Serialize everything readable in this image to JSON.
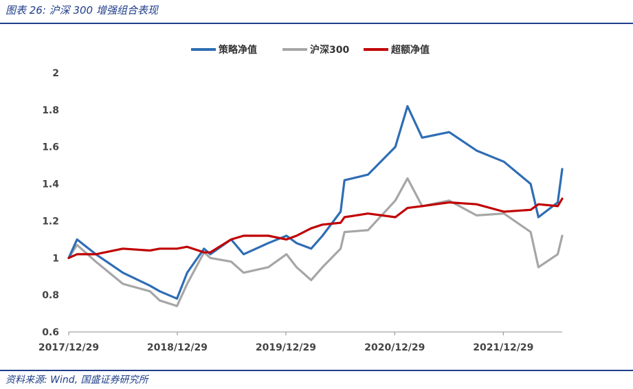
{
  "figure": {
    "title": "图表 26:  沪深 300 增强组合表现",
    "source": "资料来源: Wind, 国盛证券研究所"
  },
  "chart_data": {
    "type": "line",
    "title": "",
    "xlabel": "",
    "ylabel": "",
    "ylim": [
      0.6,
      2.0
    ],
    "yticks": [
      "0.6",
      "0.8",
      "1",
      "1.2",
      "1.4",
      "1.6",
      "1.8",
      "2"
    ],
    "xticks": [
      "2017/12/29",
      "2018/12/29",
      "2019/12/29",
      "2020/12/29",
      "2021/12/29"
    ],
    "xlim": [
      "2017/12/29",
      "2022/07/15"
    ],
    "grid": false,
    "legend": "top-center",
    "x": [
      "2017/12/29",
      "2018/01/26",
      "2018/03/30",
      "2018/06/29",
      "2018/09/28",
      "2018/10/31",
      "2018/12/28",
      "2019/01/31",
      "2019/03/29",
      "2019/04/19",
      "2019/06/28",
      "2019/08/09",
      "2019/10/31",
      "2019/12/31",
      "2020/02/03",
      "2020/03/23",
      "2020/04/30",
      "2020/06/30",
      "2020/07/13",
      "2020/09/30",
      "2020/12/31",
      "2021/02/10",
      "2021/03/31",
      "2021/06/30",
      "2021/09/30",
      "2021/12/31",
      "2022/03/31",
      "2022/04/26",
      "2022/06/30",
      "2022/07/15"
    ],
    "series": [
      {
        "name": "策略净值",
        "color": "#2e6db4",
        "values": [
          1.0,
          1.1,
          1.02,
          0.92,
          0.85,
          0.82,
          0.78,
          0.92,
          1.05,
          1.02,
          1.1,
          1.02,
          1.08,
          1.12,
          1.08,
          1.05,
          1.12,
          1.25,
          1.42,
          1.45,
          1.6,
          1.82,
          1.65,
          1.68,
          1.58,
          1.52,
          1.4,
          1.22,
          1.3,
          1.48
        ]
      },
      {
        "name": "沪深300",
        "color": "#a6a6a6",
        "values": [
          1.0,
          1.07,
          0.98,
          0.86,
          0.82,
          0.77,
          0.74,
          0.86,
          1.03,
          1.0,
          0.98,
          0.92,
          0.95,
          1.02,
          0.95,
          0.88,
          0.95,
          1.05,
          1.14,
          1.15,
          1.31,
          1.43,
          1.28,
          1.31,
          1.23,
          1.24,
          1.14,
          0.95,
          1.02,
          1.12
        ]
      },
      {
        "name": "超额净值",
        "color": "#c00000",
        "values": [
          1.0,
          1.02,
          1.02,
          1.05,
          1.04,
          1.05,
          1.05,
          1.06,
          1.03,
          1.03,
          1.1,
          1.12,
          1.12,
          1.1,
          1.12,
          1.16,
          1.18,
          1.19,
          1.22,
          1.24,
          1.22,
          1.27,
          1.28,
          1.3,
          1.29,
          1.25,
          1.26,
          1.29,
          1.28,
          1.32
        ]
      }
    ]
  }
}
